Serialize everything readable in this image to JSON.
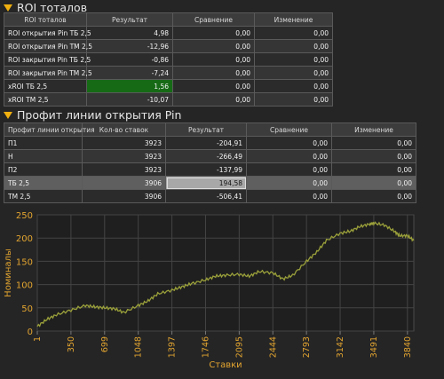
{
  "roi_section": {
    "title": "ROI тоталов",
    "headers": [
      "ROI тоталов",
      "Результат",
      "Сравнение",
      "Изменение"
    ],
    "rows": [
      {
        "name": "ROI открытия Pin ТБ 2,5",
        "result": "4,98",
        "compare": "0,00",
        "change": "0,00"
      },
      {
        "name": "ROI открытия Pin ТМ 2,5",
        "result": "-12,96",
        "compare": "0,00",
        "change": "0,00"
      },
      {
        "name": "ROI закрытия Pin ТБ 2,5",
        "result": "-0,86",
        "compare": "0,00",
        "change": "0,00"
      },
      {
        "name": "ROI закрытия Pin ТМ 2,5",
        "result": "-7,24",
        "compare": "0,00",
        "change": "0,00"
      },
      {
        "name": "xROI ТБ 2,5",
        "result": "1,56",
        "compare": "0,00",
        "change": "0,00"
      },
      {
        "name": "xROI ТМ 2,5",
        "result": "-10,07",
        "compare": "0,00",
        "change": "0,00"
      }
    ]
  },
  "profit_section": {
    "title": "Профит линии открытия Pin",
    "headers": [
      "Профит линии открытия",
      "Кол-во ставок",
      "Результат",
      "Сравнение",
      "Изменение"
    ],
    "rows": [
      {
        "name": "П1",
        "count": "3923",
        "result": "-204,91",
        "compare": "0,00",
        "change": "0,00"
      },
      {
        "name": "Н",
        "count": "3923",
        "result": "-266,49",
        "compare": "0,00",
        "change": "0,00"
      },
      {
        "name": "П2",
        "count": "3923",
        "result": "-137,99",
        "compare": "0,00",
        "change": "0,00"
      },
      {
        "name": "ТБ 2,5",
        "count": "3906",
        "result": "194,58",
        "compare": "0,00",
        "change": "0,00"
      },
      {
        "name": "ТМ 2,5",
        "count": "3906",
        "result": "-506,41",
        "compare": "0,00",
        "change": "0,00"
      }
    ]
  },
  "colors": {
    "accent_triangle": "#f0b010",
    "chart_line": "#9aa03a",
    "axis_text": "#e3a530",
    "highlight_green": "#166a16"
  },
  "chart_data": {
    "type": "line",
    "xlabel": "Ставки",
    "ylabel": "Номиналы",
    "xlim": [
      1,
      3906
    ],
    "ylim": [
      0,
      250
    ],
    "x_ticks": [
      1,
      350,
      699,
      1048,
      1397,
      1746,
      2095,
      2444,
      2793,
      3142,
      3491,
      3840
    ],
    "y_ticks": [
      0,
      50,
      100,
      150,
      200,
      250
    ],
    "grid": true,
    "series": [
      {
        "x": [
          1,
          100,
          200,
          350,
          500,
          600,
          699,
          800,
          900,
          1048,
          1150,
          1250,
          1397,
          1500,
          1600,
          1746,
          1850,
          1950,
          2095,
          2200,
          2300,
          2444,
          2550,
          2650,
          2793,
          2900,
          3000,
          3142,
          3250,
          3350,
          3450,
          3491,
          3600,
          3700,
          3760,
          3840,
          3906
        ],
        "y": [
          10,
          25,
          35,
          45,
          55,
          52,
          50,
          48,
          40,
          55,
          65,
          80,
          88,
          95,
          102,
          110,
          118,
          120,
          122,
          118,
          128,
          125,
          112,
          120,
          150,
          170,
          195,
          210,
          215,
          225,
          230,
          232,
          228,
          215,
          205,
          205,
          195
        ]
      }
    ]
  }
}
